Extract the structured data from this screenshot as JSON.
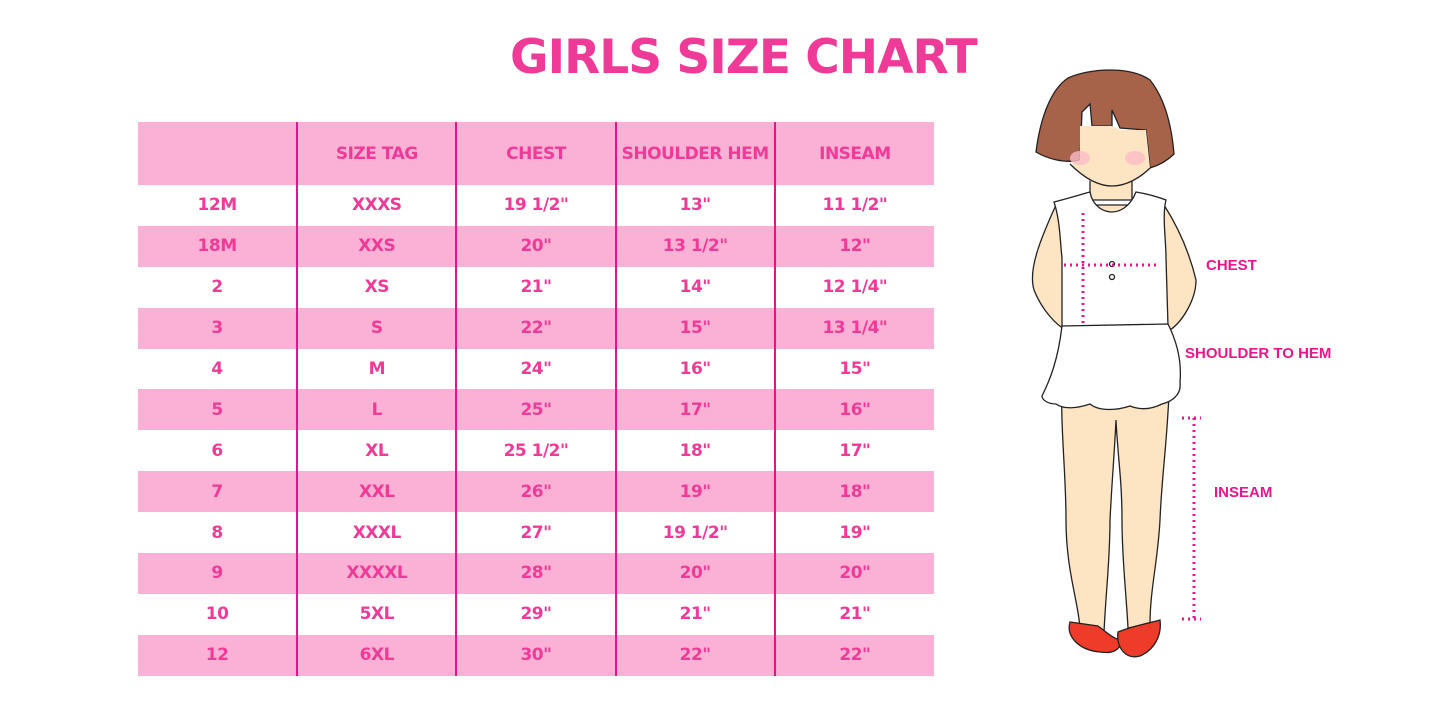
{
  "title": "GIRLS SIZE CHART",
  "colors": {
    "accent": "#ef3a97",
    "pink_row": "#fbb1d6",
    "divider": "#e0168a",
    "label": "#e8168a",
    "hair": "#a7624a",
    "skin": "#fde5c3",
    "shoe": "#ee3b2a"
  },
  "table": {
    "headers": [
      "",
      "SIZE TAG",
      "CHEST",
      "SHOULDER HEM",
      "INSEAM"
    ],
    "rows": [
      [
        "12M",
        "XXXS",
        "19 1/2\"",
        "13\"",
        "11 1/2\""
      ],
      [
        "18M",
        "XXS",
        "20\"",
        "13 1/2\"",
        "12\""
      ],
      [
        "2",
        "XS",
        "21\"",
        "14\"",
        "12 1/4\""
      ],
      [
        "3",
        "S",
        "22\"",
        "15\"",
        "13 1/4\""
      ],
      [
        "4",
        "M",
        "24\"",
        "16\"",
        "15\""
      ],
      [
        "5",
        "L",
        "25\"",
        "17\"",
        "16\""
      ],
      [
        "6",
        "XL",
        "25 1/2\"",
        "18\"",
        "17\""
      ],
      [
        "7",
        "XXL",
        "26\"",
        "19\"",
        "18\""
      ],
      [
        "8",
        "XXXL",
        "27\"",
        "19 1/2\"",
        "19\""
      ],
      [
        "9",
        "XXXXL",
        "28\"",
        "20\"",
        "20\""
      ],
      [
        "10",
        "5XL",
        "29\"",
        "21\"",
        "21\""
      ],
      [
        "12",
        "6XL",
        "30\"",
        "22\"",
        "22\""
      ]
    ]
  },
  "illustration": {
    "labels": {
      "chest": "CHEST",
      "shoulder_to_hem": "SHOULDER TO HEM",
      "inseam": "INSEAM"
    }
  }
}
